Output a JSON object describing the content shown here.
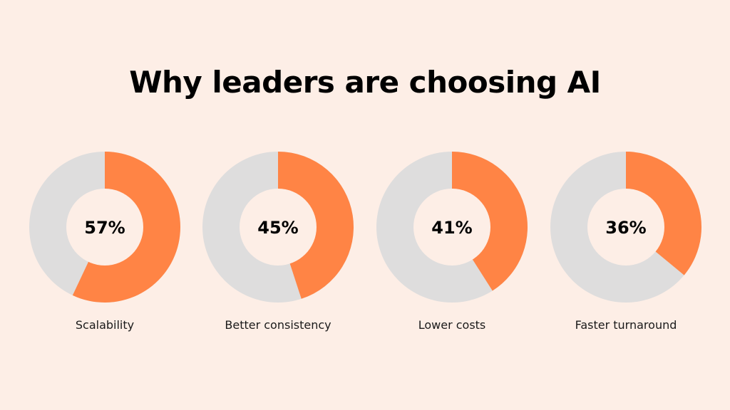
{
  "colors": {
    "background": "#FDEEE6",
    "accent": "#FF8445",
    "remainder": "#DEDDDD",
    "hole": "#FDEEE6",
    "text": "#000000",
    "label": "#1A1A1A"
  },
  "chart_data": {
    "type": "pie",
    "title": "Why leaders are choosing AI",
    "categories": [
      "Scalability",
      "Better consistency",
      "Lower costs",
      "Faster turnaround"
    ],
    "values": [
      57,
      45,
      41,
      36
    ],
    "value_labels": [
      "57%",
      "45%",
      "41%",
      "36%"
    ],
    "unit": "%",
    "max": 100
  }
}
